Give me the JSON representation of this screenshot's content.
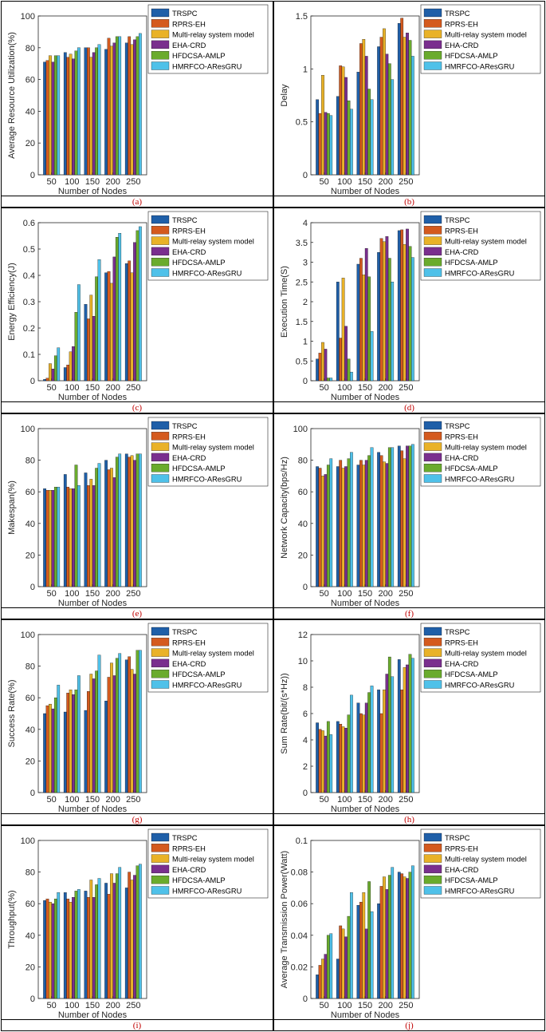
{
  "chart_data": [
    {
      "type": "bar",
      "caption": "(a)",
      "title": "",
      "xlabel": "Number of Nodes",
      "ylabel": "Average Resource Utilization(%)",
      "categories": [
        "50",
        "100",
        "150",
        "200",
        "250"
      ],
      "ylim": [
        0,
        100
      ],
      "yticks": [
        "0",
        "20",
        "40",
        "60",
        "80",
        "100"
      ],
      "series": [
        {
          "name": "TRSPC",
          "values": [
            71,
            77,
            80,
            79,
            83
          ]
        },
        {
          "name": "RPRS-EH",
          "values": [
            72,
            74,
            80,
            86,
            87
          ]
        },
        {
          "name": "Multi-relay system model",
          "values": [
            75,
            76,
            74,
            81,
            82
          ]
        },
        {
          "name": "EHA-CRD",
          "values": [
            71,
            73,
            77,
            83,
            85
          ]
        },
        {
          "name": "HFDCSA-AMLP",
          "values": [
            75,
            78,
            80,
            87,
            87
          ]
        },
        {
          "name": "HMRFCO-AResGRU",
          "values": [
            75,
            80,
            82,
            87,
            89
          ]
        }
      ]
    },
    {
      "type": "bar",
      "caption": "(b)",
      "title": "",
      "xlabel": "Number of Nodes",
      "ylabel": "Delay",
      "categories": [
        "50",
        "100",
        "150",
        "200",
        "250"
      ],
      "ylim": [
        0,
        1.5
      ],
      "yticks": [
        "0",
        "0.5",
        "1",
        "1.5"
      ],
      "series": [
        {
          "name": "TRSPC",
          "values": [
            0.71,
            0.74,
            0.97,
            1.21,
            1.43
          ]
        },
        {
          "name": "RPRS-EH",
          "values": [
            0.58,
            1.03,
            1.24,
            1.3,
            1.48
          ]
        },
        {
          "name": "Multi-relay system model",
          "values": [
            0.94,
            1.02,
            1.28,
            1.38,
            1.3
          ]
        },
        {
          "name": "EHA-CRD",
          "values": [
            0.59,
            0.92,
            1.12,
            1.14,
            1.34
          ]
        },
        {
          "name": "HFDCSA-AMLP",
          "values": [
            0.58,
            0.7,
            0.81,
            1.05,
            1.27
          ]
        },
        {
          "name": "HMRFCO-AResGRU",
          "values": [
            0.56,
            0.62,
            0.71,
            0.9,
            1.12
          ]
        }
      ]
    },
    {
      "type": "bar",
      "caption": "(c)",
      "title": "",
      "xlabel": "Number of Nodes",
      "ylabel": "Energy Efficiency(J)",
      "categories": [
        "50",
        "100",
        "150",
        "200",
        "250"
      ],
      "ylim": [
        0,
        0.6
      ],
      "yticks": [
        "0",
        "0.1",
        "0.2",
        "0.3",
        "0.4",
        "0.5",
        "0.6"
      ],
      "series": [
        {
          "name": "TRSPC",
          "values": [
            0.005,
            0.05,
            0.29,
            0.41,
            0.445
          ]
        },
        {
          "name": "RPRS-EH",
          "values": [
            0.01,
            0.06,
            0.235,
            0.415,
            0.455
          ]
        },
        {
          "name": "Multi-relay system model",
          "values": [
            0.065,
            0.11,
            0.325,
            0.37,
            0.41
          ]
        },
        {
          "name": "EHA-CRD",
          "values": [
            0.045,
            0.13,
            0.245,
            0.47,
            0.525
          ]
        },
        {
          "name": "HFDCSA-AMLP",
          "values": [
            0.095,
            0.26,
            0.395,
            0.545,
            0.57
          ]
        },
        {
          "name": "HMRFCO-AResGRU",
          "values": [
            0.125,
            0.365,
            0.46,
            0.56,
            0.585
          ]
        }
      ]
    },
    {
      "type": "bar",
      "caption": "(d)",
      "title": "",
      "xlabel": "Number of Nodes",
      "ylabel": "Execution Time(S)",
      "categories": [
        "50",
        "100",
        "150",
        "200",
        "250"
      ],
      "ylim": [
        0,
        4
      ],
      "yticks": [
        "0",
        "0.5",
        "1",
        "1.5",
        "2",
        "2.5",
        "3",
        "3.5",
        "4"
      ],
      "series": [
        {
          "name": "TRSPC",
          "values": [
            0.55,
            2.5,
            2.95,
            3.25,
            3.8
          ]
        },
        {
          "name": "RPRS-EH",
          "values": [
            0.7,
            1.08,
            3.1,
            3.6,
            3.82
          ]
        },
        {
          "name": "Multi-relay system model",
          "values": [
            0.97,
            2.6,
            2.68,
            3.52,
            3.45
          ]
        },
        {
          "name": "EHA-CRD",
          "values": [
            0.8,
            1.38,
            3.35,
            3.65,
            3.84
          ]
        },
        {
          "name": "HFDCSA-AMLP",
          "values": [
            0.07,
            0.55,
            2.63,
            3.1,
            3.4
          ]
        },
        {
          "name": "HMRFCO-AResGRU",
          "values": [
            0.07,
            0.22,
            1.25,
            2.5,
            3.12
          ]
        }
      ]
    },
    {
      "type": "bar",
      "caption": "(e)",
      "title": "",
      "xlabel": "Number of Nodes",
      "ylabel": "Makespan(%)",
      "categories": [
        "50",
        "100",
        "150",
        "200",
        "250"
      ],
      "ylim": [
        0,
        100
      ],
      "yticks": [
        "0",
        "20",
        "40",
        "60",
        "80",
        "100"
      ],
      "series": [
        {
          "name": "TRSPC",
          "values": [
            62,
            71,
            72,
            80,
            84
          ]
        },
        {
          "name": "RPRS-EH",
          "values": [
            61,
            63,
            64,
            74,
            82
          ]
        },
        {
          "name": "Multi-relay system model",
          "values": [
            61,
            62,
            68,
            75,
            83
          ]
        },
        {
          "name": "EHA-CRD",
          "values": [
            61,
            62,
            64,
            69,
            80
          ]
        },
        {
          "name": "HFDCSA-AMLP",
          "values": [
            63,
            77,
            75,
            82,
            84
          ]
        },
        {
          "name": "HMRFCO-AResGRU",
          "values": [
            63,
            64,
            78,
            84,
            84
          ]
        }
      ]
    },
    {
      "type": "bar",
      "caption": "(f)",
      "title": "",
      "xlabel": "Number of Nodes",
      "ylabel": "Network Capacity(bps/Hz)",
      "categories": [
        "50",
        "100",
        "150",
        "200",
        "250"
      ],
      "ylim": [
        0,
        100
      ],
      "yticks": [
        "0",
        "20",
        "40",
        "60",
        "80",
        "100"
      ],
      "series": [
        {
          "name": "TRSPC",
          "values": [
            76,
            76,
            77,
            85,
            89
          ]
        },
        {
          "name": "RPRS-EH",
          "values": [
            75,
            80,
            80,
            83,
            86
          ]
        },
        {
          "name": "Multi-relay system model",
          "values": [
            70,
            75,
            77,
            79,
            81
          ]
        },
        {
          "name": "EHA-CRD",
          "values": [
            71,
            76,
            80,
            78,
            89
          ]
        },
        {
          "name": "HFDCSA-AMLP",
          "values": [
            77,
            81,
            83,
            88,
            89
          ]
        },
        {
          "name": "HMRFCO-AResGRU",
          "values": [
            81,
            85,
            88,
            88,
            90
          ]
        }
      ]
    },
    {
      "type": "bar",
      "caption": "(g)",
      "title": "",
      "xlabel": "Number of Nodes",
      "ylabel": "Success Rate(%)",
      "categories": [
        "50",
        "100",
        "150",
        "200",
        "250"
      ],
      "ylim": [
        0,
        100
      ],
      "yticks": [
        "0",
        "20",
        "40",
        "60",
        "80",
        "100"
      ],
      "series": [
        {
          "name": "TRSPC",
          "values": [
            50,
            51,
            52,
            58,
            84
          ]
        },
        {
          "name": "RPRS-EH",
          "values": [
            55,
            63,
            64,
            73,
            86
          ]
        },
        {
          "name": "Multi-relay system model",
          "values": [
            56,
            65,
            75,
            82,
            78
          ]
        },
        {
          "name": "EHA-CRD",
          "values": [
            53,
            62,
            72,
            74,
            75
          ]
        },
        {
          "name": "HFDCSA-AMLP",
          "values": [
            60,
            65,
            77,
            85,
            90
          ]
        },
        {
          "name": "HMRFCO-AResGRU",
          "values": [
            68,
            74,
            87,
            88,
            90
          ]
        }
      ]
    },
    {
      "type": "bar",
      "caption": "(h)",
      "title": "",
      "xlabel": "Number of Nodes",
      "ylabel": "Sum Rate(bit/(s*Hz))",
      "categories": [
        "50",
        "100",
        "150",
        "200",
        "250"
      ],
      "ylim": [
        0,
        12
      ],
      "yticks": [
        "0",
        "2",
        "4",
        "6",
        "8",
        "10",
        "12"
      ],
      "series": [
        {
          "name": "TRSPC",
          "values": [
            5.3,
            5.4,
            6.8,
            7.8,
            10.1
          ]
        },
        {
          "name": "RPRS-EH",
          "values": [
            4.8,
            5.2,
            6.0,
            6.0,
            7.8
          ]
        },
        {
          "name": "Multi-relay system model",
          "values": [
            4.7,
            5.0,
            5.9,
            7.8,
            9.5
          ]
        },
        {
          "name": "EHA-CRD",
          "values": [
            4.3,
            4.9,
            6.8,
            9.0,
            9.7
          ]
        },
        {
          "name": "HFDCSA-AMLP",
          "values": [
            5.4,
            5.9,
            7.6,
            10.3,
            10.5
          ]
        },
        {
          "name": "HMRFCO-AResGRU",
          "values": [
            4.4,
            7.4,
            8.1,
            8.8,
            10.2
          ]
        }
      ]
    },
    {
      "type": "bar",
      "caption": "(i)",
      "title": "",
      "xlabel": "Number of Nodes",
      "ylabel": "Throughput(%)",
      "categories": [
        "50",
        "100",
        "150",
        "200",
        "250"
      ],
      "ylim": [
        0,
        100
      ],
      "yticks": [
        "0",
        "20",
        "40",
        "60",
        "80",
        "100"
      ],
      "series": [
        {
          "name": "TRSPC",
          "values": [
            62,
            67,
            68,
            73,
            70
          ]
        },
        {
          "name": "RPRS-EH",
          "values": [
            63,
            63,
            64,
            66,
            80
          ]
        },
        {
          "name": "Multi-relay system model",
          "values": [
            61,
            61,
            75,
            79,
            75
          ]
        },
        {
          "name": "EHA-CRD",
          "values": [
            60,
            64,
            64,
            73,
            78
          ]
        },
        {
          "name": "HFDCSA-AMLP",
          "values": [
            63,
            68,
            72,
            79,
            84
          ]
        },
        {
          "name": "HMRFCO-AResGRU",
          "values": [
            67,
            69,
            76,
            83,
            85
          ]
        }
      ]
    },
    {
      "type": "bar",
      "caption": "(j)",
      "title": "",
      "xlabel": "Number of Nodes",
      "ylabel": "Average Transmission Power(Watt)",
      "categories": [
        "50",
        "100",
        "150",
        "200",
        "250"
      ],
      "ylim": [
        0,
        0.1
      ],
      "yticks": [
        "0",
        "0.02",
        "0.04",
        "0.06",
        "0.08",
        "0.1"
      ],
      "series": [
        {
          "name": "TRSPC",
          "values": [
            0.015,
            0.025,
            0.059,
            0.06,
            0.08
          ]
        },
        {
          "name": "RPRS-EH",
          "values": [
            0.021,
            0.046,
            0.061,
            0.071,
            0.079
          ]
        },
        {
          "name": "Multi-relay system model",
          "values": [
            0.025,
            0.044,
            0.067,
            0.077,
            0.077
          ]
        },
        {
          "name": "EHA-CRD",
          "values": [
            0.028,
            0.039,
            0.044,
            0.069,
            0.076
          ]
        },
        {
          "name": "HFDCSA-AMLP",
          "values": [
            0.04,
            0.052,
            0.074,
            0.078,
            0.08
          ]
        },
        {
          "name": "HMRFCO-AResGRU",
          "values": [
            0.041,
            0.067,
            0.055,
            0.083,
            0.084
          ]
        }
      ]
    }
  ],
  "colors": [
    "#1f5fa8",
    "#d45a1e",
    "#e9b228",
    "#7a2f8e",
    "#6aab2d",
    "#4fc1e9"
  ]
}
